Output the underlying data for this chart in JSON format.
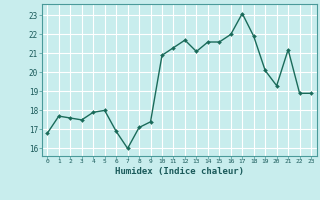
{
  "x": [
    0,
    1,
    2,
    3,
    4,
    5,
    6,
    7,
    8,
    9,
    10,
    11,
    12,
    13,
    14,
    15,
    16,
    17,
    18,
    19,
    20,
    21,
    22,
    23
  ],
  "y": [
    16.8,
    17.7,
    17.6,
    17.5,
    17.9,
    18.0,
    16.9,
    16.0,
    17.1,
    17.4,
    20.9,
    21.3,
    21.7,
    21.1,
    21.6,
    21.6,
    22.0,
    23.1,
    21.9,
    20.1,
    19.3,
    21.2,
    18.9,
    18.9
  ],
  "xlabel": "Humidex (Indice chaleur)",
  "ylabel": "",
  "ylim": [
    15.6,
    23.6
  ],
  "xlim": [
    -0.5,
    23.5
  ],
  "bg_color": "#c8eded",
  "grid_color": "#ffffff",
  "line_color": "#1a6b5a",
  "marker_color": "#1a6b5a",
  "yticks": [
    16,
    17,
    18,
    19,
    20,
    21,
    22,
    23
  ],
  "xticks": [
    0,
    1,
    2,
    3,
    4,
    5,
    6,
    7,
    8,
    9,
    10,
    11,
    12,
    13,
    14,
    15,
    16,
    17,
    18,
    19,
    20,
    21,
    22,
    23
  ]
}
